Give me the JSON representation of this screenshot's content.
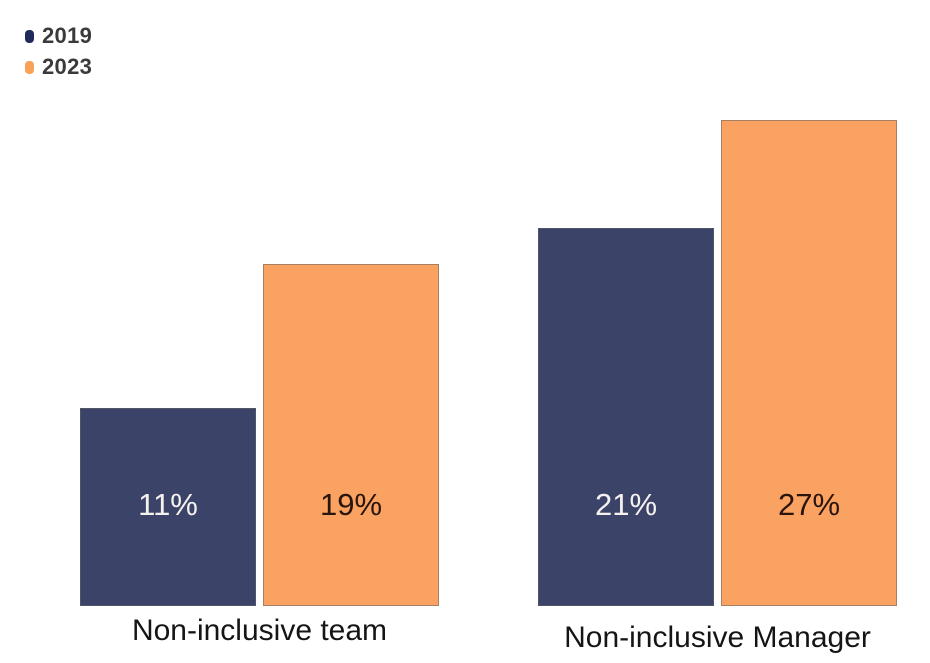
{
  "legend": {
    "items": [
      {
        "label": "2019",
        "color": "#1F2A5B"
      },
      {
        "label": "2023",
        "color": "#FAA158"
      }
    ]
  },
  "chart_data": {
    "type": "bar",
    "categories": [
      "Non-inclusive team",
      "Non-inclusive Manager"
    ],
    "series": [
      {
        "name": "2019",
        "values": [
          11,
          21
        ],
        "bar_color": "#3B4468",
        "value_label_color": "#F5F2F0"
      },
      {
        "name": "2023",
        "values": [
          19,
          27
        ],
        "bar_color": "#F9A262",
        "value_label_color": "#2A140C"
      }
    ],
    "value_suffix": "%",
    "ylim": [
      0,
      30
    ],
    "grid": false,
    "legend_position": "top-left"
  },
  "colors": {
    "background": "#FFFFFF",
    "bar_border": "#646464",
    "category_label": "#151515",
    "legend_text": "#3A3A3A"
  }
}
